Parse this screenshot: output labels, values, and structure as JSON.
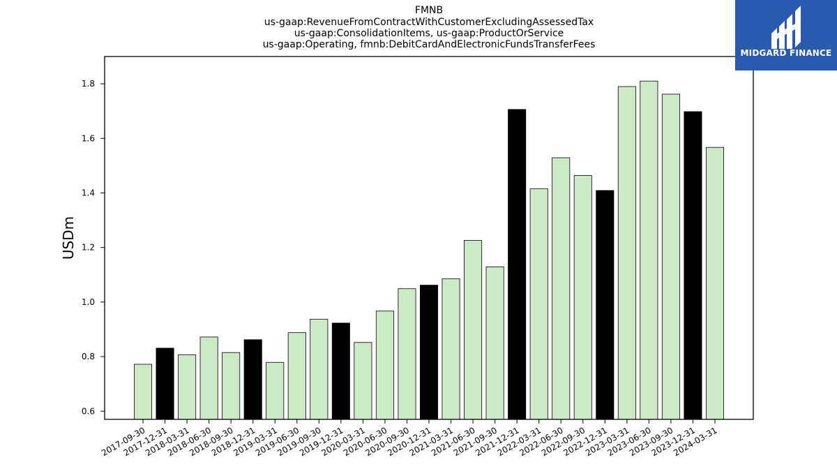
{
  "chart_data": {
    "type": "bar",
    "title_lines": [
      "FMNB",
      "us-gaap:RevenueFromContractWithCustomerExcludingAssessedTax",
      "us-gaap:ConsolidationItems, us-gaap:ProductOrService",
      "us-gaap:Operating, fmnb:DebitCardAndElectronicFundsTransferFees"
    ],
    "ylabel": "USDm",
    "xlabel": "",
    "ylim": [
      0.57,
      1.9
    ],
    "yticks": [
      0.6,
      0.8,
      1.0,
      1.2,
      1.4,
      1.6,
      1.8
    ],
    "categories": [
      "2017-09-30",
      "2017-12-31",
      "2018-03-31",
      "2018-06-30",
      "2018-09-30",
      "2018-12-31",
      "2019-03-31",
      "2019-06-30",
      "2019-09-30",
      "2019-12-31",
      "2020-03-31",
      "2020-06-30",
      "2020-09-30",
      "2020-12-31",
      "2021-03-31",
      "2021-06-30",
      "2021-09-30",
      "2021-12-31",
      "2022-03-31",
      "2022-06-30",
      "2022-09-30",
      "2022-12-31",
      "2023-03-31",
      "2023-06-30",
      "2023-09-30",
      "2023-12-31",
      "2024-03-31"
    ],
    "values": [
      0.772,
      0.831,
      0.807,
      0.872,
      0.815,
      0.862,
      0.779,
      0.888,
      0.937,
      0.923,
      0.852,
      0.967,
      1.049,
      1.062,
      1.085,
      1.226,
      1.129,
      1.706,
      1.415,
      1.529,
      1.464,
      1.409,
      1.79,
      1.81,
      1.762,
      1.698,
      1.567
    ],
    "highlighted": [
      false,
      true,
      false,
      false,
      false,
      true,
      false,
      false,
      false,
      true,
      false,
      false,
      false,
      true,
      false,
      false,
      false,
      true,
      false,
      false,
      false,
      true,
      false,
      false,
      false,
      true,
      false
    ],
    "colors": {
      "normal": "#cdeac6",
      "highlight": "#000000",
      "edge": "#000000"
    },
    "grid": false,
    "legend": "none"
  },
  "logo": {
    "text": "MIDGARD FINANCE",
    "bg": "#2a5aad"
  }
}
